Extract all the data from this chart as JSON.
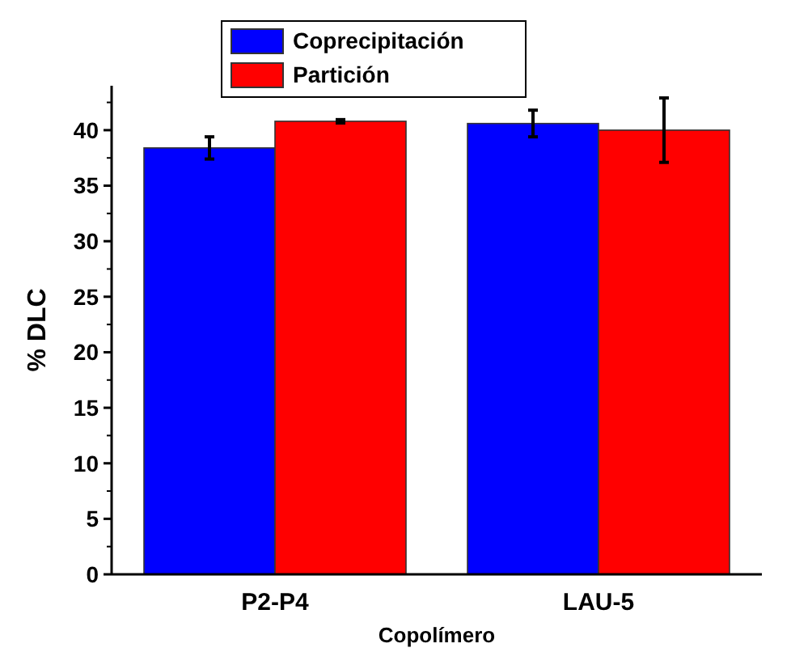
{
  "chart_data": {
    "type": "bar",
    "xlabel": "Copolímero",
    "ylabel": "% DLC",
    "categories": [
      "P2-P4",
      "LAU-5"
    ],
    "series": [
      {
        "name": "Coprecipitación",
        "color": "#0000ff",
        "values": [
          38.4,
          40.6
        ],
        "errors": [
          1.0,
          1.2
        ]
      },
      {
        "name": "Partición",
        "color": "#ff0000",
        "values": [
          40.8,
          40.0
        ],
        "errors": [
          0.15,
          2.9
        ]
      }
    ],
    "ylim": [
      0,
      44
    ],
    "yticks": [
      0,
      5,
      10,
      15,
      20,
      25,
      30,
      35,
      40
    ],
    "grid": false,
    "legend": "top"
  }
}
